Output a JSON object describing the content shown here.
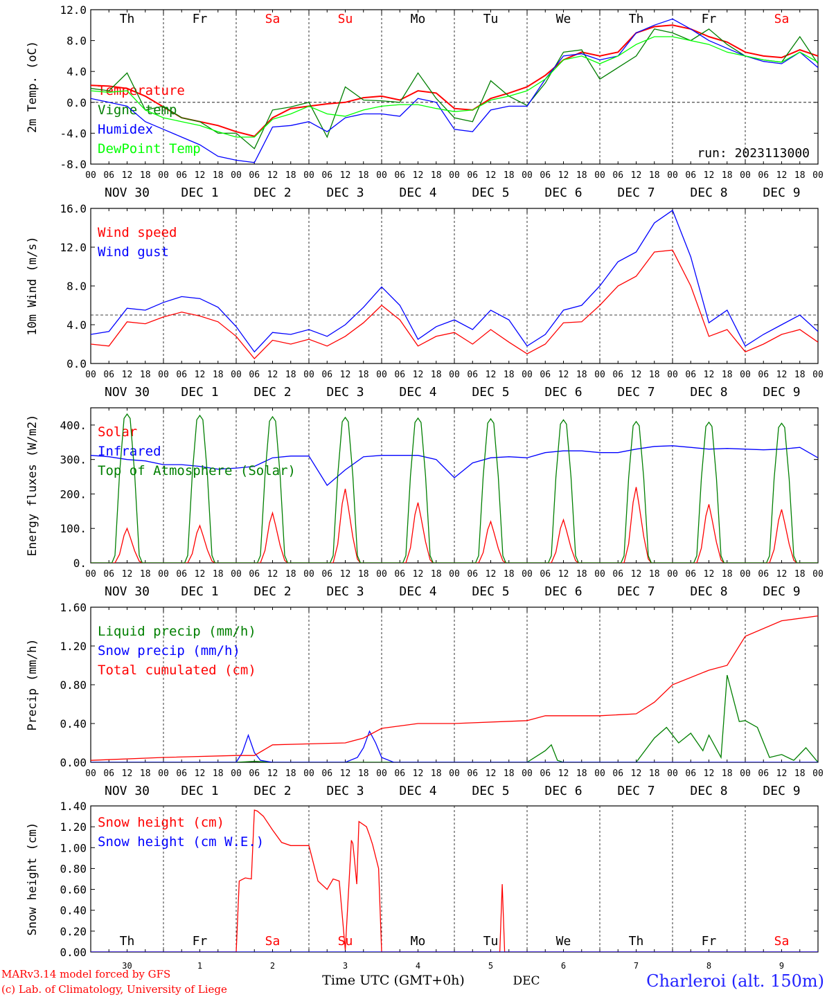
{
  "days": [
    "Th",
    "Fr",
    "Sa",
    "Su",
    "Mo",
    "Tu",
    "We",
    "Th",
    "Fr",
    "Sa"
  ],
  "weekend_days": [
    "Sa",
    "Su"
  ],
  "date_labels": [
    "NOV 30",
    "DEC  1",
    "DEC  2",
    "DEC  3",
    "DEC  4",
    "DEC  5",
    "DEC  6",
    "DEC  7",
    "DEC  8",
    "DEC  9"
  ],
  "hour_ticks": [
    "00",
    "06",
    "12",
    "18"
  ],
  "run_label": "run: 2023113000",
  "colors": {
    "red": "#ff0000",
    "green": "#007f00",
    "blue": "#0000ff",
    "lightgreen": "#00ff00",
    "weekend": "#ff0000",
    "text": "#000000"
  },
  "footer": {
    "model": "MARv3.14 model forced by GFS",
    "copyright": "(c) Lab. of Climatology, University of Liege",
    "xlabel": "Time UTC (GMT+0h)",
    "month": "DEC",
    "station": "Charleroi (alt. 150m)",
    "day_numbers": [
      "30",
      "1",
      "2",
      "3",
      "4",
      "5",
      "6",
      "7",
      "8",
      "9"
    ]
  },
  "chart_data": [
    {
      "type": "line",
      "ylabel": "2m Temp. (oC)",
      "ylim": [
        -8,
        12
      ],
      "yticks": [
        "12.0",
        "8.0",
        "4.0",
        "0.0",
        "-4.0",
        "-8.0"
      ],
      "ref_line": 0,
      "x_unit": "hours since NOV 30 00 UTC",
      "series": [
        {
          "name": "Temperature",
          "color": "red",
          "x": [
            0,
            6,
            12,
            18,
            24,
            30,
            36,
            42,
            48,
            54,
            60,
            66,
            72,
            78,
            84,
            90,
            96,
            102,
            108,
            114,
            120,
            126,
            132,
            138,
            144,
            150,
            156,
            162,
            168,
            174,
            180,
            186,
            192,
            198,
            204,
            210,
            216,
            222,
            228,
            234,
            240
          ],
          "values": [
            2.2,
            2.1,
            1.8,
            0.8,
            -0.6,
            -2.0,
            -2.5,
            -3.0,
            -3.8,
            -4.4,
            -2.0,
            -0.8,
            -0.5,
            -0.2,
            0.0,
            0.6,
            0.8,
            0.3,
            1.5,
            1.2,
            -0.8,
            -1.0,
            0.5,
            1.2,
            2.0,
            3.5,
            5.5,
            6.5,
            6.0,
            6.5,
            9.0,
            9.8,
            10.0,
            9.5,
            8.5,
            7.8,
            6.5,
            6.0,
            5.8,
            6.8,
            6.0
          ]
        },
        {
          "name": "Vigne temp",
          "color": "green",
          "x": [
            0,
            6,
            12,
            18,
            24,
            30,
            36,
            42,
            48,
            54,
            60,
            66,
            72,
            78,
            84,
            90,
            96,
            102,
            108,
            114,
            120,
            126,
            132,
            138,
            144,
            150,
            156,
            162,
            168,
            174,
            180,
            186,
            192,
            198,
            204,
            210,
            216,
            222,
            228,
            234,
            240
          ],
          "values": [
            1.8,
            1.5,
            3.8,
            -1.0,
            -0.5,
            -2.0,
            -2.5,
            -4.0,
            -4.0,
            -6.0,
            -1.0,
            -0.6,
            0.0,
            -4.5,
            2.0,
            0.3,
            0.2,
            0.0,
            3.8,
            0.5,
            -2.0,
            -2.5,
            2.8,
            0.8,
            -0.4,
            2.5,
            6.5,
            6.8,
            3.0,
            4.5,
            6.0,
            9.5,
            9.0,
            8.0,
            9.5,
            7.5,
            6.0,
            5.5,
            5.2,
            8.5,
            5.0
          ]
        },
        {
          "name": "Humidex",
          "color": "blue",
          "x": [
            0,
            6,
            12,
            18,
            24,
            30,
            36,
            42,
            48,
            54,
            60,
            66,
            72,
            78,
            84,
            90,
            96,
            102,
            108,
            114,
            120,
            126,
            132,
            138,
            144,
            150,
            156,
            162,
            168,
            174,
            180,
            186,
            192,
            198,
            204,
            210,
            216,
            222,
            228,
            234,
            240
          ],
          "values": [
            0.5,
            0.0,
            -0.5,
            -2.5,
            -3.5,
            -4.5,
            -5.5,
            -7.0,
            -7.5,
            -7.8,
            -3.2,
            -3.0,
            -2.5,
            -3.8,
            -2.0,
            -1.5,
            -1.5,
            -1.8,
            0.5,
            0.0,
            -3.5,
            -3.8,
            -1.0,
            -0.5,
            -0.5,
            3.0,
            6.0,
            6.3,
            5.5,
            6.0,
            9.0,
            10.0,
            10.8,
            9.5,
            8.0,
            7.0,
            6.0,
            5.3,
            5.0,
            6.5,
            4.5
          ]
        },
        {
          "name": "DewPoint Temp",
          "color": "lightgreen",
          "x": [
            0,
            6,
            12,
            18,
            24,
            30,
            36,
            42,
            48,
            54,
            60,
            66,
            72,
            78,
            84,
            90,
            96,
            102,
            108,
            114,
            120,
            126,
            132,
            138,
            144,
            150,
            156,
            162,
            168,
            174,
            180,
            186,
            192,
            198,
            204,
            210,
            216,
            222,
            228,
            234,
            240
          ],
          "values": [
            1.5,
            1.3,
            1.5,
            -1.0,
            -2.0,
            -2.5,
            -3.0,
            -3.8,
            -4.5,
            -4.5,
            -2.2,
            -1.5,
            -0.5,
            -1.5,
            -1.8,
            -1.0,
            -0.5,
            -0.3,
            -0.3,
            -0.8,
            -1.2,
            -1.0,
            0.3,
            0.8,
            1.5,
            3.0,
            5.5,
            6.0,
            5.0,
            6.0,
            7.5,
            8.5,
            8.5,
            8.0,
            7.5,
            6.5,
            6.0,
            5.5,
            5.2,
            6.5,
            5.2
          ]
        }
      ]
    },
    {
      "type": "line",
      "ylabel": "10m Wind (m/s)",
      "ylim": [
        0,
        16
      ],
      "yticks": [
        "16.0",
        "12.0",
        "8.0",
        "4.0",
        "0.0"
      ],
      "ref_line": 5,
      "series": [
        {
          "name": "Wind speed",
          "color": "red",
          "x": [
            0,
            6,
            12,
            18,
            24,
            30,
            36,
            42,
            48,
            54,
            60,
            66,
            72,
            78,
            84,
            90,
            96,
            102,
            108,
            114,
            120,
            126,
            132,
            138,
            144,
            150,
            156,
            162,
            168,
            174,
            180,
            186,
            192,
            198,
            204,
            210,
            216,
            222,
            228,
            234,
            240
          ],
          "values": [
            2.0,
            1.8,
            4.3,
            4.1,
            4.8,
            5.3,
            4.9,
            4.3,
            2.8,
            0.5,
            2.4,
            2.0,
            2.5,
            1.8,
            2.8,
            4.2,
            6.0,
            4.5,
            1.8,
            2.8,
            3.2,
            2.0,
            3.5,
            2.2,
            1.0,
            2.0,
            4.2,
            4.3,
            6.0,
            8.0,
            9.0,
            11.5,
            11.7,
            8.0,
            2.8,
            3.5,
            1.2,
            2.0,
            3.0,
            3.5,
            2.2
          ]
        },
        {
          "name": "Wind gust",
          "color": "blue",
          "x": [
            0,
            6,
            12,
            18,
            24,
            30,
            36,
            42,
            48,
            54,
            60,
            66,
            72,
            78,
            84,
            90,
            96,
            102,
            108,
            114,
            120,
            126,
            132,
            138,
            144,
            150,
            156,
            162,
            168,
            174,
            180,
            186,
            192,
            198,
            204,
            210,
            216,
            222,
            228,
            234,
            240
          ],
          "values": [
            3.0,
            3.3,
            5.7,
            5.5,
            6.3,
            6.9,
            6.7,
            5.8,
            3.8,
            1.2,
            3.2,
            3.0,
            3.5,
            2.8,
            4.0,
            5.8,
            7.9,
            6.0,
            2.5,
            3.8,
            4.5,
            3.5,
            5.5,
            4.5,
            1.8,
            3.0,
            5.5,
            6.0,
            8.0,
            10.5,
            11.5,
            14.5,
            15.8,
            11.0,
            4.2,
            5.5,
            1.8,
            3.0,
            4.0,
            5.0,
            3.3
          ]
        }
      ]
    },
    {
      "type": "line",
      "ylabel": "Energy fluxes (W/m2)",
      "ylim": [
        0,
        450
      ],
      "yticks": [
        "400.",
        "300.",
        "200.",
        "100.",
        "0."
      ],
      "series": [
        {
          "name": "Solar",
          "color": "red",
          "peaks": [
            100,
            108,
            145,
            215,
            175,
            120,
            125,
            220,
            170,
            155
          ]
        },
        {
          "name": "Infrared",
          "color": "blue",
          "x": [
            0,
            6,
            12,
            18,
            24,
            30,
            36,
            42,
            48,
            54,
            60,
            66,
            72,
            78,
            84,
            90,
            96,
            102,
            108,
            114,
            120,
            126,
            132,
            138,
            144,
            150,
            156,
            162,
            168,
            174,
            180,
            186,
            192,
            198,
            204,
            210,
            216,
            222,
            228,
            234,
            240
          ],
          "values": [
            312,
            308,
            300,
            296,
            285,
            285,
            280,
            272,
            275,
            280,
            305,
            310,
            310,
            225,
            270,
            308,
            312,
            312,
            312,
            300,
            247,
            290,
            305,
            308,
            305,
            320,
            325,
            325,
            320,
            320,
            330,
            338,
            340,
            335,
            330,
            332,
            330,
            328,
            330,
            335,
            305
          ]
        },
        {
          "name": "Top of Atmosphere (Solar)",
          "color": "green",
          "peaks": [
            432,
            428,
            424,
            422,
            420,
            418,
            415,
            410,
            408,
            405
          ]
        }
      ]
    },
    {
      "type": "line",
      "ylabel": "Precip (mm/h)",
      "ylim": [
        0,
        1.6
      ],
      "yticks": [
        "1.60",
        "1.20",
        "0.80",
        "0.40",
        "0.00"
      ],
      "series": [
        {
          "name": "Liquid precip (mm/h)",
          "color": "green",
          "x": [
            0,
            12,
            24,
            36,
            48,
            54,
            60,
            66,
            72,
            84,
            96,
            102,
            108,
            120,
            132,
            144,
            150,
            152,
            154,
            156,
            168,
            180,
            186,
            190,
            194,
            198,
            202,
            204,
            208,
            210,
            214,
            216,
            220,
            224,
            228,
            232,
            236,
            240
          ],
          "values": [
            0,
            0,
            0,
            0,
            0,
            0.01,
            0,
            0,
            0,
            0,
            0,
            0,
            0,
            0,
            0,
            0,
            0.12,
            0.18,
            0.02,
            0,
            0,
            0,
            0.25,
            0.36,
            0.2,
            0.3,
            0.12,
            0.28,
            0.05,
            0.9,
            0.42,
            0.43,
            0.36,
            0.05,
            0.08,
            0.02,
            0.15,
            0
          ]
        },
        {
          "name": "Snow precip (mm/h)",
          "color": "blue",
          "x": [
            0,
            48,
            50,
            52,
            54,
            56,
            60,
            66,
            72,
            84,
            88,
            90,
            92,
            94,
            96,
            100,
            108,
            240
          ],
          "values": [
            0,
            0,
            0.1,
            0.28,
            0.1,
            0.02,
            0,
            0,
            0,
            0,
            0.05,
            0.15,
            0.32,
            0.2,
            0.05,
            0,
            0,
            0
          ]
        },
        {
          "name": "Total cumulated (cm)",
          "color": "red",
          "x": [
            0,
            24,
            48,
            54,
            60,
            72,
            84,
            90,
            96,
            108,
            120,
            144,
            150,
            168,
            180,
            186,
            192,
            204,
            210,
            216,
            228,
            240
          ],
          "values": [
            0.02,
            0.05,
            0.07,
            0.07,
            0.18,
            0.19,
            0.2,
            0.25,
            0.35,
            0.4,
            0.4,
            0.43,
            0.48,
            0.48,
            0.5,
            0.62,
            0.8,
            0.95,
            1.0,
            1.3,
            1.46,
            1.51
          ]
        }
      ]
    },
    {
      "type": "line",
      "ylabel": "Snow height (cm)",
      "ylim": [
        0,
        1.4
      ],
      "yticks": [
        "1.40",
        "1.20",
        "1.00",
        "0.80",
        "0.60",
        "0.40",
        "0.20",
        "0.00"
      ],
      "series": [
        {
          "name": "Snow height (cm)",
          "color": "red",
          "x": [
            0,
            48,
            49,
            51,
            53,
            54,
            55,
            57,
            60,
            63,
            66,
            69,
            72,
            75,
            78,
            80,
            82,
            84,
            86,
            86.5,
            87,
            87.8,
            88.5,
            91,
            92,
            93,
            95,
            96,
            96.5,
            135,
            135.8,
            136.6,
            137.3,
            240
          ],
          "values": [
            0,
            0,
            0.68,
            0.71,
            0.7,
            1.36,
            1.35,
            1.3,
            1.17,
            1.05,
            1.02,
            1.02,
            1.02,
            0.68,
            0.6,
            0.7,
            0.68,
            0.02,
            1.07,
            1.04,
            0.9,
            0.65,
            1.25,
            1.2,
            1.12,
            1.03,
            0.8,
            0.0,
            0.0,
            0.0,
            0.65,
            0.0,
            0.0,
            0.0
          ]
        },
        {
          "name": "Snow height (cm W.E.)",
          "color": "blue",
          "x": [
            0,
            240
          ],
          "values": [
            0,
            0
          ]
        }
      ]
    }
  ]
}
